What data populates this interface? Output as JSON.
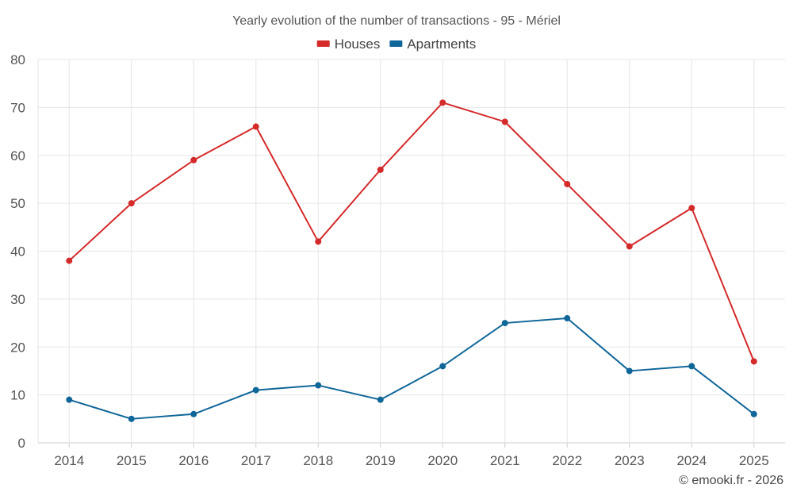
{
  "chart_data": {
    "type": "line",
    "title": "Yearly evolution of the number of transactions - 95 - Mériel",
    "categories": [
      "2014",
      "2015",
      "2016",
      "2017",
      "2018",
      "2019",
      "2020",
      "2021",
      "2022",
      "2023",
      "2024",
      "2025"
    ],
    "series": [
      {
        "name": "Houses",
        "color": "#d42a2a",
        "values": [
          38,
          50,
          59,
          66,
          42,
          57,
          71,
          67,
          54,
          41,
          49,
          17
        ]
      },
      {
        "name": "Apartments",
        "color": "#0f6699",
        "values": [
          9,
          5,
          6,
          11,
          12,
          9,
          16,
          25,
          26,
          15,
          16,
          6
        ]
      }
    ],
    "ylim": [
      0,
      80
    ],
    "yticks": [
      0,
      10,
      20,
      30,
      40,
      50,
      60,
      70,
      80
    ],
    "xlabel": "",
    "ylabel": "",
    "grid": true,
    "legend": "top-center"
  },
  "credit": "© emooki.fr - 2026"
}
